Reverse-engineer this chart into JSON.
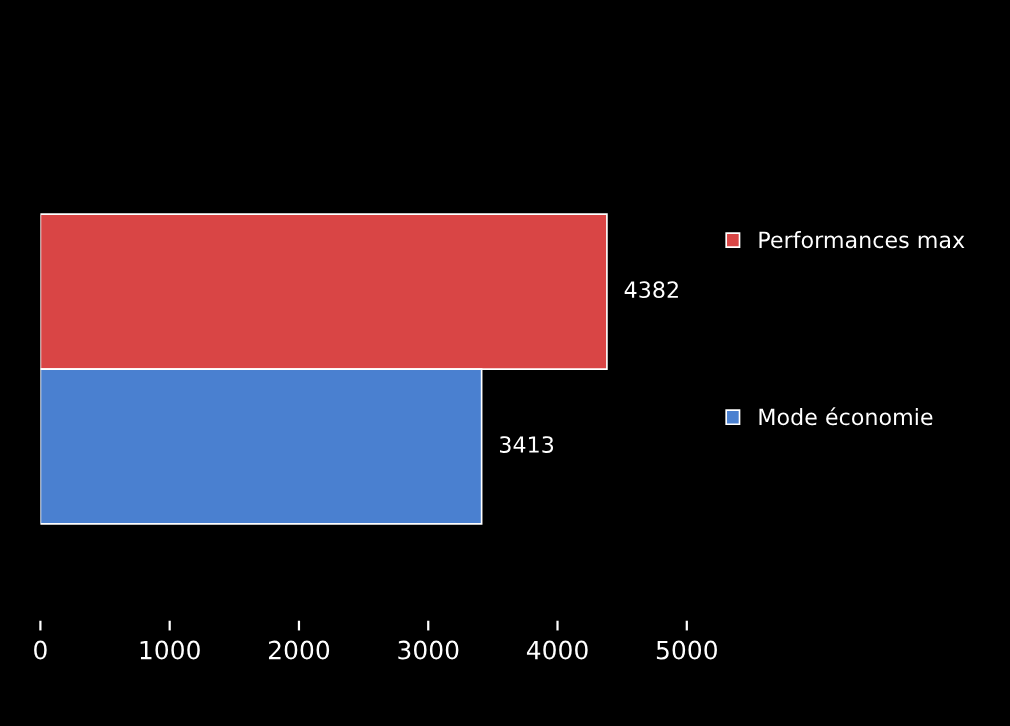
{
  "chart_data": {
    "type": "bar",
    "orientation": "horizontal",
    "categories": [
      null
    ],
    "series": [
      {
        "name": "Performances max",
        "color": "#d94545",
        "values": [
          4382
        ]
      },
      {
        "name": "Mode économie",
        "color": "#4a80d0",
        "values": [
          3413
        ]
      }
    ],
    "xlim": [
      0,
      5000
    ],
    "xticks": [
      0,
      1000,
      2000,
      3000,
      4000,
      5000
    ],
    "grid": false,
    "legend": "right",
    "data_labels": true
  }
}
